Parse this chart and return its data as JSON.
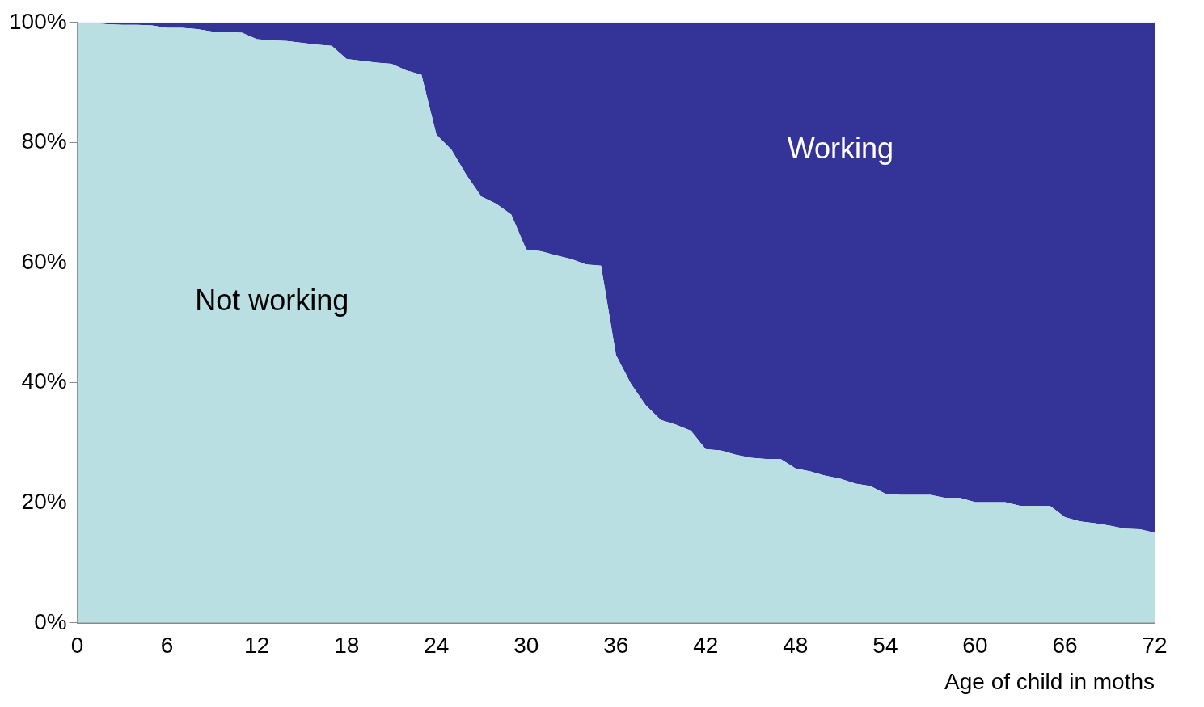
{
  "chart_data": {
    "type": "area",
    "stacked": true,
    "xlabel": "Age of child in moths",
    "x": [
      0,
      1,
      2,
      3,
      4,
      5,
      6,
      7,
      8,
      9,
      10,
      11,
      12,
      13,
      14,
      15,
      16,
      17,
      18,
      19,
      20,
      21,
      22,
      23,
      24,
      25,
      26,
      27,
      28,
      29,
      30,
      31,
      32,
      33,
      34,
      35,
      36,
      37,
      38,
      39,
      40,
      41,
      42,
      43,
      44,
      45,
      46,
      47,
      48,
      49,
      50,
      51,
      52,
      53,
      54,
      55,
      56,
      57,
      58,
      59,
      60,
      61,
      62,
      63,
      64,
      65,
      66,
      67,
      68,
      69,
      70,
      71,
      72
    ],
    "series": [
      {
        "name": "Not working",
        "color": "#b9dfe3",
        "values": [
          100,
          99.9,
          99.7,
          99.6,
          99.6,
          99.5,
          99.1,
          99.1,
          98.9,
          98.5,
          98.4,
          98.3,
          97.2,
          97.0,
          96.9,
          96.6,
          96.3,
          96.1,
          93.9,
          93.6,
          93.3,
          93.1,
          92.0,
          91.3,
          81.3,
          78.8,
          74.6,
          71.0,
          69.8,
          68.0,
          62.2,
          61.9,
          61.2,
          60.6,
          59.7,
          59.5,
          44.6,
          39.8,
          36.2,
          33.8,
          33.0,
          32.0,
          28.9,
          28.7,
          28.0,
          27.5,
          27.3,
          27.3,
          25.7,
          25.2,
          24.5,
          24.0,
          23.2,
          22.8,
          21.5,
          21.3,
          21.3,
          21.3,
          20.8,
          20.8,
          20.1,
          20.1,
          20.1,
          19.5,
          19.5,
          19.5,
          17.6,
          16.9,
          16.6,
          16.2,
          15.7,
          15.6,
          15.0
        ]
      },
      {
        "name": "Working",
        "color": "#343397",
        "values": [
          0,
          0.1,
          0.3,
          0.4,
          0.4,
          0.5,
          0.9,
          0.9,
          1.1,
          1.5,
          1.6,
          1.7,
          2.8,
          3.0,
          3.1,
          3.4,
          3.7,
          3.9,
          6.1,
          6.4,
          6.7,
          6.9,
          8.0,
          8.7,
          18.7,
          21.2,
          25.4,
          29.0,
          30.2,
          32.0,
          37.8,
          38.1,
          38.8,
          39.4,
          40.3,
          40.5,
          55.4,
          60.2,
          63.8,
          66.2,
          67.0,
          68.0,
          71.1,
          71.3,
          72.0,
          72.5,
          72.7,
          72.7,
          74.3,
          74.8,
          75.5,
          76.0,
          76.8,
          77.2,
          78.5,
          78.7,
          78.7,
          78.7,
          79.2,
          79.2,
          79.9,
          79.9,
          79.9,
          80.5,
          80.5,
          80.5,
          82.4,
          83.1,
          83.4,
          83.8,
          84.3,
          84.4,
          85.0
        ]
      }
    ],
    "xlim": [
      0,
      72
    ],
    "xticks": [
      0,
      6,
      12,
      18,
      24,
      30,
      36,
      42,
      48,
      54,
      60,
      66,
      72
    ],
    "ylim": [
      0,
      100
    ],
    "yticks": [
      {
        "value": 0,
        "label": "0%"
      },
      {
        "value": 20,
        "label": "20%"
      },
      {
        "value": 40,
        "label": "40%"
      },
      {
        "value": 60,
        "label": "60%"
      },
      {
        "value": 80,
        "label": "80%"
      },
      {
        "value": 100,
        "label": "100%"
      }
    ],
    "grid": false,
    "legend": false
  }
}
